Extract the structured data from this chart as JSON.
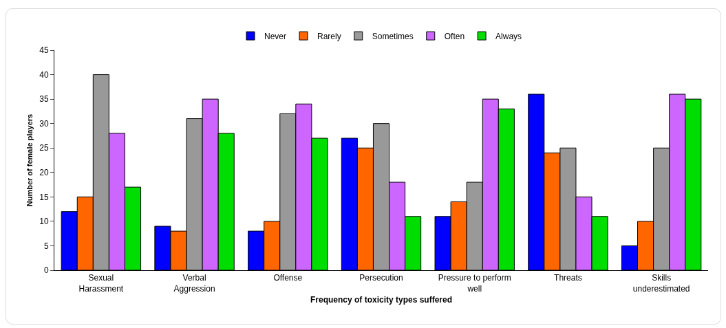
{
  "chart_data": {
    "type": "bar",
    "xlabel": "Frequency of toxicity types suffered",
    "ylabel": "Number of female players",
    "categories": [
      "Sexual Harassment",
      "Verbal Aggression",
      "Offense",
      "Persecution",
      "Pressure to perform well",
      "Threats",
      "Skills underestimated"
    ],
    "series": [
      {
        "name": "Never",
        "color": "#0000ff",
        "values": [
          12,
          9,
          8,
          27,
          11,
          36,
          5
        ]
      },
      {
        "name": "Rarely",
        "color": "#ff6600",
        "values": [
          15,
          8,
          10,
          25,
          14,
          24,
          10
        ]
      },
      {
        "name": "Sometimes",
        "color": "#999999",
        "values": [
          40,
          31,
          32,
          30,
          18,
          25,
          25
        ]
      },
      {
        "name": "Often",
        "color": "#cc66ff",
        "values": [
          28,
          35,
          34,
          18,
          35,
          15,
          36
        ]
      },
      {
        "name": "Always",
        "color": "#00dd00",
        "values": [
          17,
          28,
          27,
          11,
          33,
          11,
          35
        ]
      }
    ],
    "ylim": [
      0,
      45
    ],
    "yticks": [
      0,
      5,
      10,
      15,
      20,
      25,
      30,
      35,
      40,
      45
    ],
    "grid": false,
    "legend": "top"
  }
}
